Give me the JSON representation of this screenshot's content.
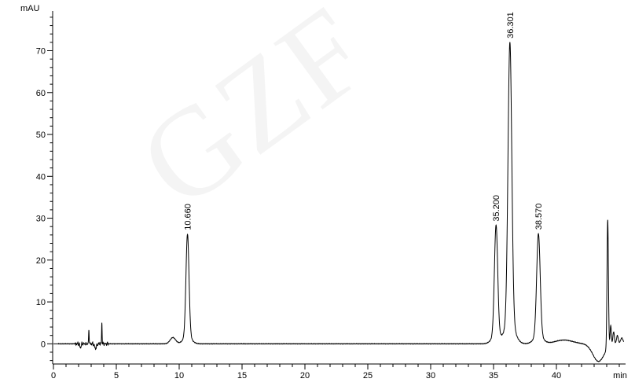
{
  "watermark": {
    "text": "GZF",
    "color": "#f4f4f4"
  },
  "colors": {
    "background": "#ffffff",
    "trace": "#000000",
    "axis": "#000000",
    "tick_label": "#000000",
    "peak_label": "#000000"
  },
  "chart_data": {
    "type": "line",
    "title": "",
    "xlabel": "min",
    "ylabel": "mAU",
    "xlim": [
      0,
      45.5
    ],
    "ylim": [
      -5,
      80
    ],
    "grid": false,
    "legend": "none",
    "x_major_ticks": [
      0,
      5,
      10,
      15,
      20,
      25,
      30,
      35,
      40
    ],
    "x_minor_step": 1,
    "y_major_ticks": [
      0,
      10,
      20,
      30,
      40,
      50,
      60,
      70
    ],
    "y_minor_step": 2,
    "peaks": [
      {
        "rt": 10.66,
        "height_mAU": 26.2,
        "sigma": 0.12,
        "label": "10.660"
      },
      {
        "rt": 35.2,
        "height_mAU": 28.3,
        "sigma": 0.13,
        "label": "35.200"
      },
      {
        "rt": 36.301,
        "height_mAU": 72.0,
        "sigma": 0.15,
        "label": "36.301"
      },
      {
        "rt": 38.57,
        "height_mAU": 26.3,
        "sigma": 0.14,
        "label": "38.570"
      }
    ],
    "unlabeled_features": [
      {
        "rt": 2.15,
        "height_mAU": -0.9,
        "sigma": 0.05,
        "type": "dip"
      },
      {
        "rt": 2.82,
        "height_mAU": 3.4,
        "sigma": 0.022,
        "type": "spike"
      },
      {
        "rt": 3.35,
        "height_mAU": -1.1,
        "sigma": 0.08,
        "type": "dip"
      },
      {
        "rt": 3.85,
        "height_mAU": 5.2,
        "sigma": 0.02,
        "type": "spike"
      },
      {
        "rt": 9.5,
        "height_mAU": 1.5,
        "sigma": 0.22,
        "type": "bump"
      },
      {
        "rt": 40.6,
        "height_mAU": 0.9,
        "sigma": 0.7,
        "type": "bump"
      },
      {
        "rt": 43.35,
        "height_mAU": -4.2,
        "sigma": 0.45,
        "type": "dip"
      },
      {
        "rt": 44.08,
        "height_mAU": 30.8,
        "sigma": 0.055,
        "type": "peak"
      },
      {
        "rt": 44.32,
        "height_mAU": 4.8,
        "sigma": 0.05,
        "type": "spike"
      },
      {
        "rt": 44.55,
        "height_mAU": 3.0,
        "sigma": 0.06,
        "type": "spike"
      },
      {
        "rt": 44.85,
        "height_mAU": 2.0,
        "sigma": 0.07,
        "type": "spike"
      },
      {
        "rt": 45.2,
        "height_mAU": 1.4,
        "sigma": 0.1,
        "type": "spike"
      }
    ]
  }
}
